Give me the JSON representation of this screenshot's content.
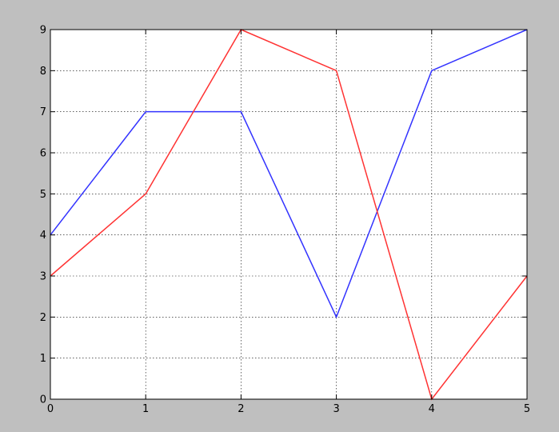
{
  "chart_data": {
    "type": "line",
    "title": "",
    "xlabel": "",
    "ylabel": "",
    "x": [
      0,
      1,
      2,
      3,
      4,
      5
    ],
    "xlim": [
      0,
      5
    ],
    "ylim": [
      0,
      9
    ],
    "xticks": [
      "0",
      "1",
      "2",
      "3",
      "4",
      "5"
    ],
    "yticks": [
      "0",
      "1",
      "2",
      "3",
      "4",
      "5",
      "6",
      "7",
      "8",
      "9"
    ],
    "grid": true,
    "legend": "none",
    "series": [
      {
        "color": "#3333ff",
        "values": [
          4,
          7,
          7,
          2,
          8,
          9
        ]
      },
      {
        "color": "#ff3333",
        "values": [
          3,
          5,
          9,
          8,
          0,
          3
        ]
      }
    ]
  }
}
